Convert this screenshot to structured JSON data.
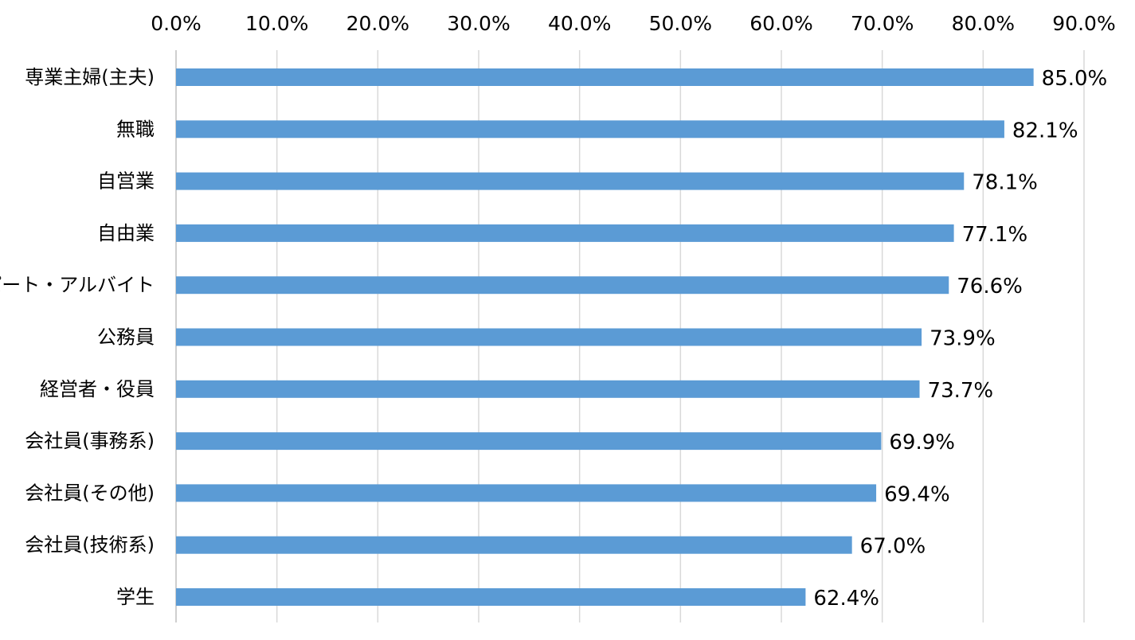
{
  "chart_data": {
    "type": "bar",
    "orientation": "horizontal",
    "categories": [
      "専業主婦(主夫)",
      "無職",
      "自営業",
      "自由業",
      "パート・アルバイト",
      "公務員",
      "経営者・役員",
      "会社員(事務系)",
      "会社員(その他)",
      "会社員(技術系)",
      "学生"
    ],
    "values": [
      85.0,
      82.1,
      78.1,
      77.1,
      76.6,
      73.9,
      73.7,
      69.9,
      69.4,
      67.0,
      62.4
    ],
    "value_labels": [
      "85.0%",
      "82.1%",
      "78.1%",
      "77.1%",
      "76.6%",
      "73.9%",
      "73.7%",
      "69.9%",
      "69.4%",
      "67.0%",
      "62.4%"
    ],
    "xaxis_ticks": [
      "0.0%",
      "10.0%",
      "20.0%",
      "30.0%",
      "40.0%",
      "50.0%",
      "60.0%",
      "70.0%",
      "80.0%",
      "90.0%"
    ],
    "xlim": [
      0,
      90
    ],
    "xaxis_position": "top",
    "grid": true,
    "bar_color": "#5b9bd5",
    "title": "",
    "xlabel": "",
    "ylabel": ""
  }
}
